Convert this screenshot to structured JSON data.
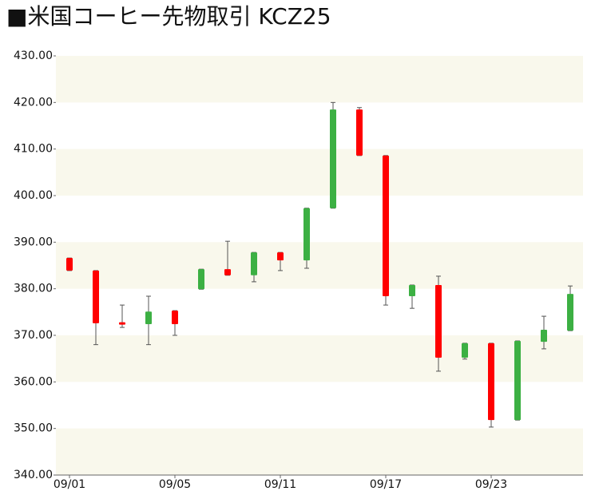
{
  "chart_data": {
    "type": "candlestick",
    "title": "■米国コーヒー先物取引  KCZ25",
    "categories": [
      "09/01",
      null,
      null,
      null,
      "09/05",
      null,
      null,
      null,
      "09/11",
      null,
      null,
      null,
      "09/17",
      null,
      null,
      null,
      "09/23",
      null,
      null,
      null
    ],
    "open": [
      386.6,
      383.9,
      372.8,
      372.4,
      375.3,
      379.9,
      384.2,
      382.9,
      387.8,
      386.1,
      397.3,
      418.5,
      408.6,
      378.4,
      380.8,
      365.2,
      368.3,
      351.8,
      368.6,
      371.0
    ],
    "high": [
      386.6,
      383.9,
      376.5,
      378.4,
      375.3,
      384.2,
      390.2,
      387.8,
      387.8,
      397.3,
      420.0,
      418.9,
      408.6,
      380.8,
      382.7,
      368.3,
      368.3,
      368.8,
      374.1,
      380.6
    ],
    "low": [
      383.9,
      368.0,
      371.7,
      368.0,
      370.0,
      379.9,
      382.9,
      381.5,
      383.9,
      384.4,
      397.3,
      408.6,
      376.5,
      375.8,
      362.3,
      364.9,
      350.3,
      351.8,
      367.1,
      371.0
    ],
    "close": [
      383.9,
      372.6,
      372.3,
      375.1,
      372.4,
      384.2,
      382.9,
      387.8,
      386.1,
      397.3,
      418.5,
      408.6,
      378.4,
      380.8,
      365.2,
      368.3,
      351.8,
      368.8,
      371.2,
      378.9
    ],
    "up_color": "#3cb043",
    "down_color": "#ff0000",
    "ylim": [
      340,
      430
    ],
    "yticks": [
      {
        "value": 340,
        "label": "340.00"
      },
      {
        "value": 350,
        "label": "350.00"
      },
      {
        "value": 360,
        "label": "360.00"
      },
      {
        "value": 370,
        "label": "370.00"
      },
      {
        "value": 380,
        "label": "380.00"
      },
      {
        "value": 390,
        "label": "390.00"
      },
      {
        "value": 400,
        "label": "400.00"
      },
      {
        "value": 410,
        "label": "410.00"
      },
      {
        "value": 420,
        "label": "420.00"
      },
      {
        "value": 430,
        "label": "430.00"
      }
    ],
    "band_color": "#f9f8ec"
  }
}
